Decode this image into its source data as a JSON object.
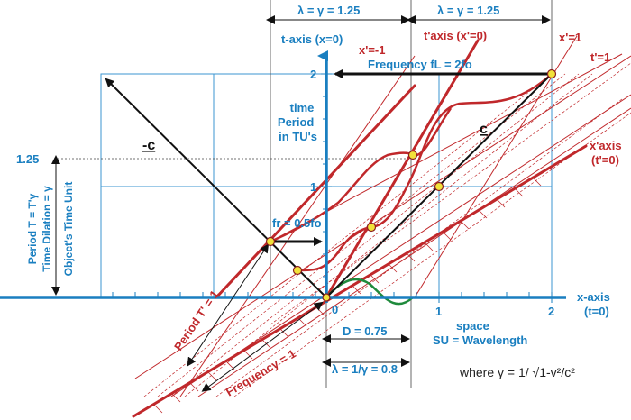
{
  "colors": {
    "blue": "#1a7fc0",
    "grid": "#3b96d2",
    "red": "#c0282b",
    "black": "#111111",
    "green": "#1f8a3c",
    "yellow": "#f2e23a"
  },
  "labels": {
    "lambda_top_left": "λ = γ = 1.25",
    "lambda_top_right": "λ = γ = 1.25",
    "t_axis": "t-axis (x=0)",
    "t_prime_axis": "t'axis (x'=0)",
    "x_prime_neg1": "x'=-1",
    "x_prime_1": "x'=1",
    "t_prime_1": "t'=1",
    "frequency_L": "Frequency fL = 2fo",
    "time_period_line1": "time",
    "time_period_line2": "Period",
    "time_period_line3": "in TU's",
    "neg_c": "-c",
    "c": "c",
    "x_prime_axis_line1": "x'axis",
    "x_prime_axis_line2": "(t'=0)",
    "val_125": "1.25",
    "period_T_line1": "Period T = T'γ",
    "period_T_line2": "Time Dilation = γ",
    "period_T_line3": "Object's Time Unit",
    "f_r": "fr = 0.5fo",
    "x_axis_line1": "x-axis",
    "x_axis_line2": "(t=0)",
    "tick_0": "0",
    "tick_1": "1",
    "tick_2": "2",
    "t_tick_1": "1",
    "t_tick_2": "2",
    "space_line1": "space",
    "space_line2": "SU = Wavelength",
    "d_label": "D = 0.75",
    "period_T_prime": "Period T' = 1",
    "frequency_1": "Frequency = 1",
    "lambda_bottom": "λ = 1/γ = 0.8",
    "where_gamma": "where γ = 1/ √1-v²/c²"
  }
}
